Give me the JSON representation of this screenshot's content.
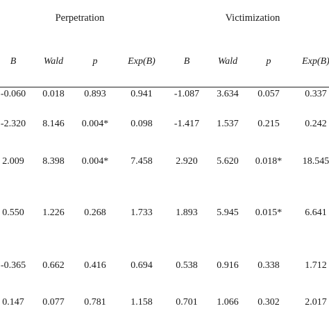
{
  "group_headers": [
    "Perpetration",
    "Victimization"
  ],
  "column_headers": [
    "B",
    "Wald",
    "p",
    "Exp(B)",
    "B",
    "Wald",
    "p",
    "Exp(B)"
  ],
  "rows": [
    [
      "-0.060",
      "0.018",
      "0.893",
      "0.941",
      "-1.087",
      "3.634",
      "0.057",
      "0.337"
    ],
    [
      "-2.320",
      "8.146",
      "0.004*",
      "0.098",
      "-1.417",
      "1.537",
      "0.215",
      "0.242"
    ],
    [
      "2.009",
      "8.398",
      "0.004*",
      "7.458",
      "2.920",
      "5.620",
      "0.018*",
      "18.545"
    ],
    [
      "0.550",
      "1.226",
      "0.268",
      "1.733",
      "1.893",
      "5.945",
      "0.015*",
      "6.641"
    ],
    [
      "-0.365",
      "0.662",
      "0.416",
      "0.694",
      "0.538",
      "0.916",
      "0.338",
      "1.712"
    ],
    [
      "0.147",
      "0.077",
      "0.781",
      "1.158",
      "0.701",
      "1.066",
      "0.302",
      "2.017"
    ]
  ]
}
